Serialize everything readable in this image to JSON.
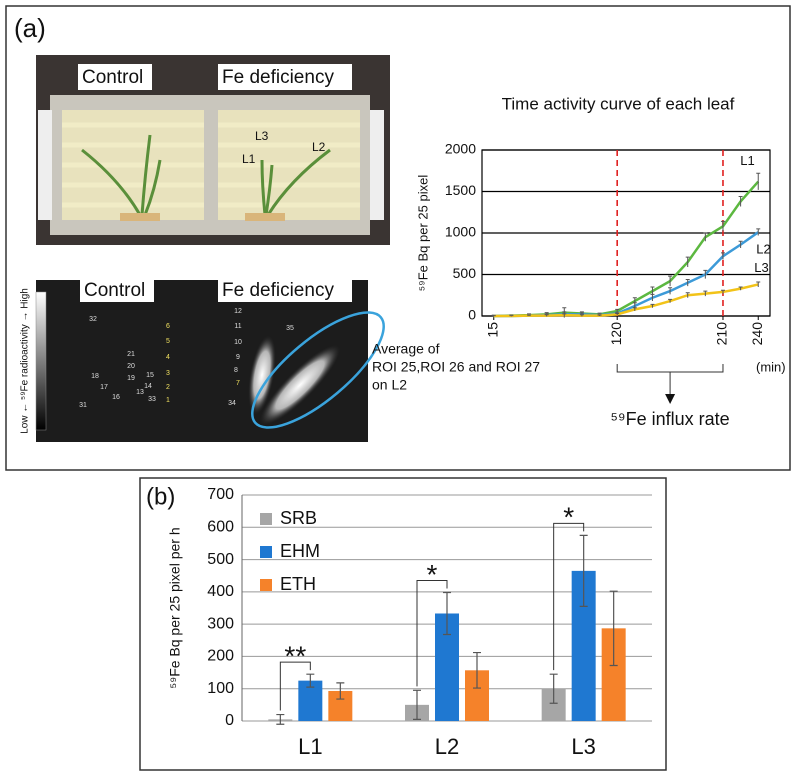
{
  "panel_a": {
    "label": "(a)",
    "photo_labels": [
      "Control",
      "Fe deficiency"
    ],
    "leaf_labels": [
      "L3",
      "L1",
      "L2"
    ],
    "image_labels": [
      "Control",
      "Fe deficiency"
    ],
    "colorbar_label": "Low ← ⁵⁹Fe radioactivity → High",
    "roi_labels": [
      "32",
      "21",
      "20",
      "19",
      "18",
      "17",
      "16",
      "15",
      "14",
      "13",
      "33",
      "31",
      "12",
      "11",
      "10",
      "9",
      "8",
      "34",
      "35",
      "6",
      "5",
      "4",
      "3",
      "2",
      "1",
      "7"
    ],
    "annotation": [
      "Average of",
      "ROI 25,ROI 26 and ROI 27",
      "on L2"
    ]
  },
  "panel_b": {
    "label": "(b)"
  },
  "chart_data": [
    {
      "type": "line",
      "title": "Time activity curve of each leaf",
      "ylabel": "⁵⁹Fe Bq per 25 pixel",
      "xlabel": "(min)",
      "x": [
        15,
        30,
        45,
        60,
        75,
        90,
        105,
        120,
        135,
        150,
        165,
        180,
        195,
        210,
        225,
        240
      ],
      "series": [
        {
          "name": "L1",
          "color": "#5cb840",
          "values": [
            0,
            5,
            10,
            20,
            40,
            30,
            20,
            60,
            180,
            300,
            420,
            650,
            950,
            1080,
            1380,
            1620
          ],
          "errors": [
            10,
            10,
            15,
            20,
            60,
            20,
            15,
            20,
            40,
            50,
            60,
            60,
            50,
            60,
            60,
            100
          ]
        },
        {
          "name": "L2",
          "color": "#3c9ad8",
          "values": [
            0,
            0,
            5,
            10,
            20,
            20,
            10,
            30,
            120,
            220,
            300,
            400,
            500,
            720,
            860,
            1010
          ],
          "errors": [
            5,
            5,
            10,
            15,
            30,
            15,
            10,
            15,
            40,
            40,
            40,
            40,
            50,
            40,
            40,
            40
          ]
        },
        {
          "name": "L3",
          "color": "#f2c318",
          "values": [
            0,
            0,
            5,
            5,
            10,
            5,
            5,
            20,
            80,
            120,
            180,
            250,
            270,
            290,
            330,
            380
          ],
          "errors": [
            5,
            5,
            5,
            10,
            15,
            10,
            5,
            10,
            20,
            20,
            20,
            30,
            30,
            20,
            20,
            30
          ]
        }
      ],
      "xlim": [
        5,
        250
      ],
      "xticks": [
        15,
        120,
        210,
        240
      ],
      "ylim": [
        0,
        2000
      ],
      "yticks": [
        0,
        500,
        1000,
        1500,
        2000
      ],
      "grid": true,
      "vlines": [
        120,
        210
      ],
      "vline_color": "#e02020",
      "annotation": "⁵⁹Fe influx rate"
    },
    {
      "type": "bar",
      "ylabel": "⁵⁹Fe Bq per 25 pixel per h",
      "categories": [
        "L1",
        "L2",
        "L3"
      ],
      "series": [
        {
          "name": "SRB",
          "color": "#a6a6a6",
          "values": [
            5,
            50,
            100
          ],
          "errors": [
            15,
            45,
            45
          ]
        },
        {
          "name": "EHM",
          "color": "#1f78d1",
          "values": [
            125,
            333,
            465
          ],
          "errors": [
            20,
            65,
            110
          ]
        },
        {
          "name": "ETH",
          "color": "#f5822a",
          "values": [
            93,
            157,
            287
          ],
          "errors": [
            25,
            55,
            115
          ]
        }
      ],
      "ylim": [
        0,
        700
      ],
      "yticks": [
        0,
        100,
        200,
        300,
        400,
        500,
        600,
        700
      ],
      "grid": true,
      "legend": "upper-left",
      "significance": [
        "**",
        "*",
        "*"
      ]
    }
  ]
}
